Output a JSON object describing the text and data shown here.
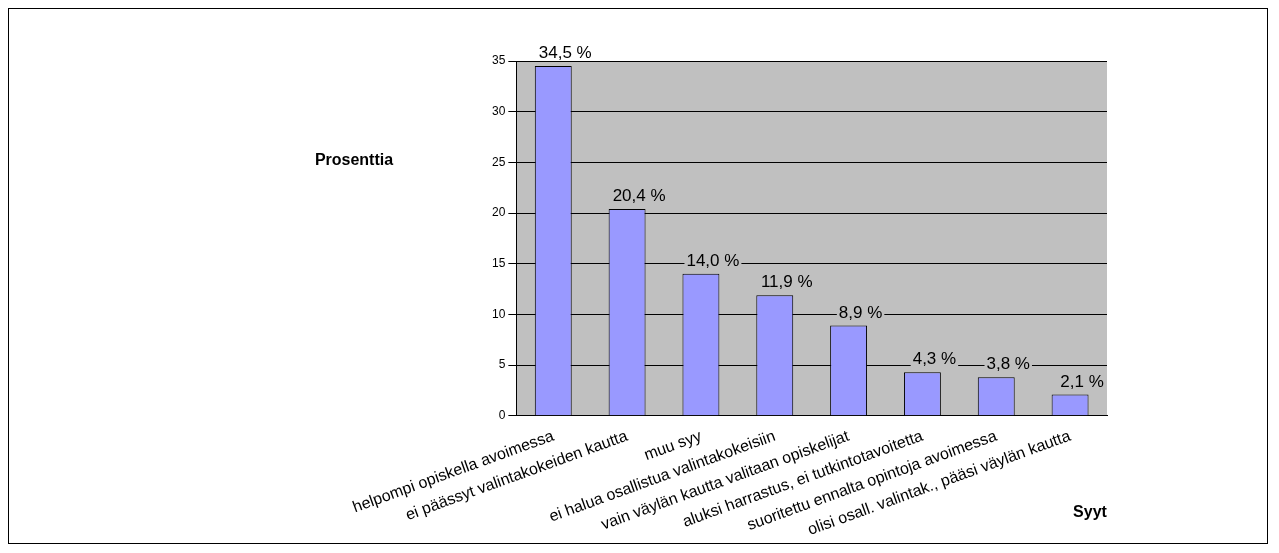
{
  "chart_data": {
    "type": "bar",
    "xlabel": "Syyt",
    "ylabel": "Prosenttia",
    "categories": [
      "helpompi opiskella avoimessa",
      "ei päässyt valintakokeiden kautta",
      "muu syy",
      "ei halua osallistua valintakokeisiin",
      "vain väylän kautta valitaan opiskelijat",
      "aluksi harrastus, ei tutkintotavoitetta",
      "suoritettu ennalta opintoja avoimessa",
      "olisi osall. valintak., pääsi väylän kautta"
    ],
    "values": [
      34.5,
      20.4,
      14.0,
      11.9,
      8.9,
      4.3,
      3.8,
      2.1
    ],
    "value_labels": [
      "34,5 %",
      "20,4 %",
      "14,0 %",
      "11,9 %",
      "8,9 %",
      "4,3 %",
      "3,8 %",
      "2,1 %"
    ],
    "color": "#9999ff",
    "ylim": [
      0,
      35
    ],
    "yticks": [
      0,
      5,
      10,
      15,
      20,
      25,
      30,
      35
    ],
    "grid": "y",
    "legend": false
  }
}
